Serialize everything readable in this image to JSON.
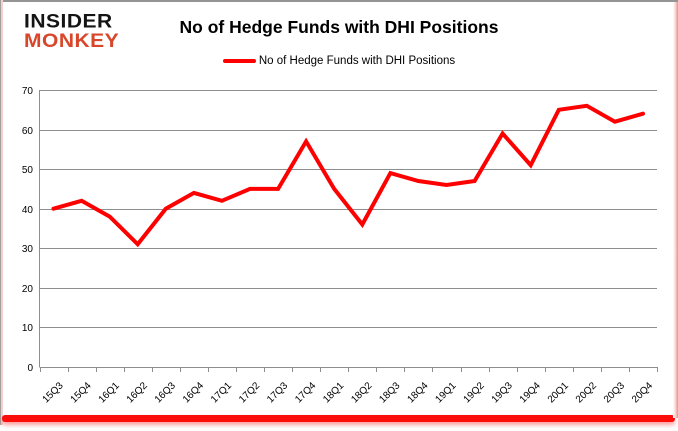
{
  "header": {
    "logo_line1": "INSIDER",
    "logo_line2": "MONKEY",
    "title": "No of Hedge Funds with DHI Positions"
  },
  "legend": {
    "label": "No of Hedge Funds with DHI Positions"
  },
  "colors": {
    "accent_red": "#ff0000",
    "grid": "#8e8e8e",
    "axis": "#8e8e8e",
    "text": "#000000",
    "logo_black": "#141414",
    "logo_red": "#d9472b",
    "bottom_bar": "#fb0d09"
  },
  "chart_data": {
    "type": "line",
    "title": "No of Hedge Funds with DHI Positions",
    "categories": [
      "15Q3",
      "15Q4",
      "16Q1",
      "16Q2",
      "16Q3",
      "16Q4",
      "17Q1",
      "17Q2",
      "17Q3",
      "17Q4",
      "18Q1",
      "18Q2",
      "18Q3",
      "18Q4",
      "19Q1",
      "19Q2",
      "19Q3",
      "19Q4",
      "20Q1",
      "20Q2",
      "20Q3",
      "20Q4"
    ],
    "series": [
      {
        "name": "No of Hedge Funds with DHI Positions",
        "values": [
          40,
          42,
          38,
          31,
          40,
          44,
          42,
          45,
          45,
          57,
          45,
          36,
          49,
          47,
          46,
          47,
          59,
          51,
          65,
          66,
          62,
          64
        ]
      }
    ],
    "ylim": [
      0,
      70
    ],
    "ytick_step": 10,
    "grid": true,
    "legend_position": "top",
    "line_color": "#ff0000",
    "line_width": 4
  }
}
